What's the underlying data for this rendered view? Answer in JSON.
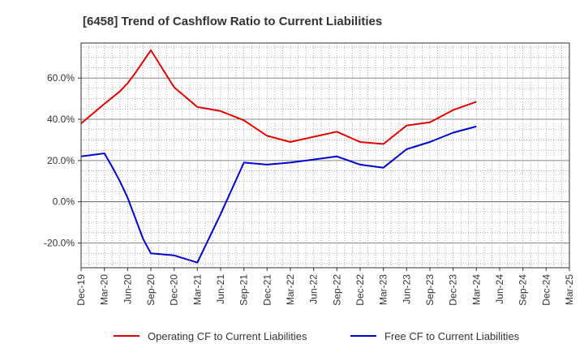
{
  "chart_data": {
    "type": "line",
    "title": "[6458]  Trend of Cashflow Ratio to Current Liabilities",
    "xlabel": "",
    "ylabel": "",
    "x": [
      "Dec-19",
      "Mar-20",
      "Jun-20",
      "Sep-20",
      "Dec-20",
      "Mar-21",
      "Jun-21",
      "Sep-21",
      "Dec-21",
      "Mar-22",
      "Jun-22",
      "Sep-22",
      "Dec-22",
      "Mar-23",
      "Jun-23",
      "Sep-23",
      "Dec-23",
      "Mar-24",
      "Jun-24",
      "Sep-24",
      "Dec-24",
      "Mar-25"
    ],
    "ylim": [
      -32,
      77
    ],
    "y_ticks": [
      -20,
      0,
      20,
      40,
      60
    ],
    "y_tick_labels": [
      "-20.0%",
      "0.0%",
      "20.0%",
      "40.0%",
      "60.0%"
    ],
    "grid": true,
    "legend": "bottom",
    "series": [
      {
        "name": "Operating CF to Current Liabilities",
        "color": "#e00000",
        "points": [
          [
            "Dec-19",
            38.0
          ],
          [
            "Mar-20",
            47.5
          ],
          [
            "Apr-20",
            50.5
          ],
          [
            "May-20",
            53.5
          ],
          [
            "Jun-20",
            57.5
          ],
          [
            "Jul-20",
            62.5
          ],
          [
            "Aug-20",
            68.0
          ],
          [
            "Sep-20",
            73.5
          ],
          [
            "Dec-20",
            55.5
          ],
          [
            "Mar-21",
            46.0
          ],
          [
            "Jun-21",
            44.0
          ],
          [
            "Sep-21",
            39.5
          ],
          [
            "Dec-21",
            32.0
          ],
          [
            "Mar-22",
            29.0
          ],
          [
            "Jun-22",
            31.5
          ],
          [
            "Sep-22",
            34.0
          ],
          [
            "Dec-22",
            29.0
          ],
          [
            "Mar-23",
            28.0
          ],
          [
            "Jun-23",
            37.0
          ],
          [
            "Sep-23",
            38.5
          ],
          [
            "Dec-23",
            44.5
          ],
          [
            "Mar-24",
            48.5
          ]
        ]
      },
      {
        "name": "Free CF to Current Liabilities",
        "color": "#0000cc",
        "points": [
          [
            "Dec-19",
            22.0
          ],
          [
            "Mar-20",
            23.5
          ],
          [
            "Apr-20",
            17.0
          ],
          [
            "May-20",
            10.0
          ],
          [
            "Jun-20",
            2.0
          ],
          [
            "Jul-20",
            -8.0
          ],
          [
            "Aug-20",
            -18.0
          ],
          [
            "Sep-20",
            -25.0
          ],
          [
            "Dec-20",
            -26.0
          ],
          [
            "Mar-21",
            -29.5
          ],
          [
            "Jun-21",
            -6.0
          ],
          [
            "Sep-21",
            19.0
          ],
          [
            "Dec-21",
            18.0
          ],
          [
            "Mar-22",
            19.0
          ],
          [
            "Jun-22",
            20.5
          ],
          [
            "Sep-22",
            22.0
          ],
          [
            "Dec-22",
            18.0
          ],
          [
            "Mar-23",
            16.5
          ],
          [
            "Jun-23",
            25.5
          ],
          [
            "Sep-23",
            29.0
          ],
          [
            "Dec-23",
            33.5
          ],
          [
            "Mar-24",
            36.5
          ]
        ]
      }
    ]
  }
}
